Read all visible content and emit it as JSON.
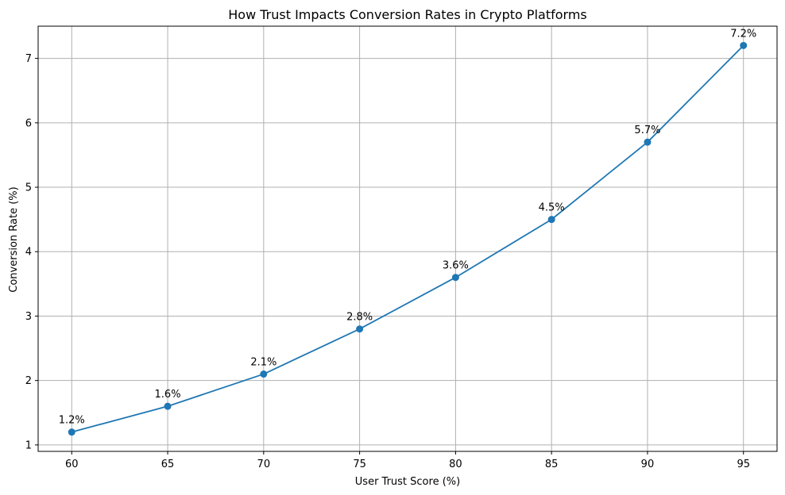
{
  "chart_data": {
    "type": "line",
    "title": "How Trust Impacts Conversion Rates in Crypto Platforms",
    "xlabel": "User Trust Score (%)",
    "ylabel": "Conversion Rate (%)",
    "x": [
      60,
      65,
      70,
      75,
      80,
      85,
      90,
      95
    ],
    "series": [
      {
        "values": [
          1.2,
          1.6,
          2.1,
          2.8,
          3.6,
          4.5,
          5.7,
          7.2
        ]
      }
    ],
    "data_labels": [
      "1.2%",
      "1.6%",
      "2.1%",
      "2.8%",
      "3.6%",
      "4.5%",
      "5.7%",
      "7.2%"
    ],
    "xticks": [
      60,
      65,
      70,
      75,
      80,
      85,
      90,
      95
    ],
    "yticks": [
      1,
      2,
      3,
      4,
      5,
      6,
      7
    ],
    "xlim": [
      58.25,
      96.75
    ],
    "ylim": [
      0.9,
      7.5
    ],
    "grid": true,
    "colors": {
      "line": "#1f77b4",
      "grid": "#b0b0b0",
      "axes": "#000000"
    }
  }
}
